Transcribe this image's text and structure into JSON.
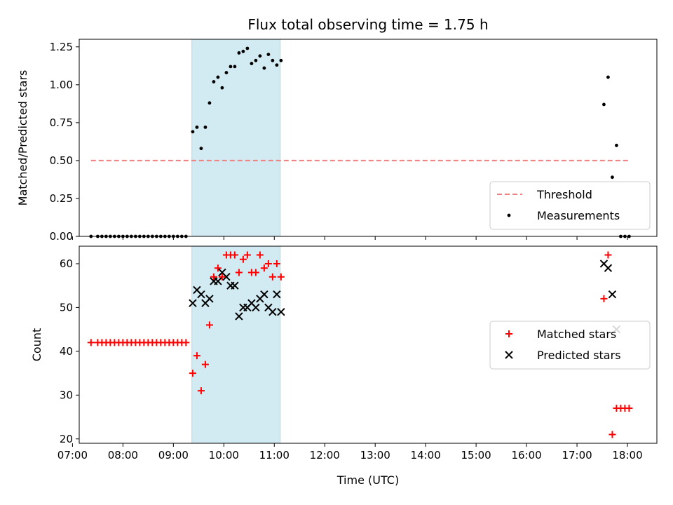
{
  "chart_data": {
    "title": "Flux total observing time = 1.75 h",
    "xlabel": "Time (UTC)",
    "xlim": [
      "07:08",
      "18:35"
    ],
    "xticks": [
      "07:00",
      "08:00",
      "09:00",
      "10:00",
      "11:00",
      "12:00",
      "13:00",
      "14:00",
      "15:00",
      "16:00",
      "17:00",
      "18:00"
    ],
    "shaded_interval": [
      "09:22",
      "11:07"
    ],
    "shaded_color": "#add8e6",
    "panels": [
      {
        "type": "scatter",
        "ylabel": "Matched/Predicted stars",
        "ylim": [
          0,
          1.3
        ],
        "yticks": [
          "0.00",
          "0.25",
          "0.50",
          "0.75",
          "1.00",
          "1.25"
        ],
        "legend_position": "lower-right",
        "series": [
          {
            "name": "Threshold",
            "style": "dashed-line",
            "color": "#f08080",
            "x": [
              "07:22",
              "18:02"
            ],
            "y": [
              0.5,
              0.5
            ]
          },
          {
            "name": "Measurements",
            "style": "dot",
            "color": "#000000",
            "x": [
              "07:22",
              "07:30",
              "07:35",
              "07:40",
              "07:45",
              "07:50",
              "07:55",
              "08:00",
              "08:05",
              "08:10",
              "08:15",
              "08:20",
              "08:25",
              "08:30",
              "08:35",
              "08:40",
              "08:45",
              "08:50",
              "08:55",
              "09:00",
              "09:05",
              "09:10",
              "09:15",
              "09:23",
              "09:28",
              "09:33",
              "09:38",
              "09:43",
              "09:48",
              "09:53",
              "09:58",
              "10:03",
              "10:08",
              "10:13",
              "10:18",
              "10:23",
              "10:28",
              "10:33",
              "10:38",
              "10:43",
              "10:48",
              "10:53",
              "10:58",
              "11:03",
              "11:08",
              "17:32",
              "17:37",
              "17:42",
              "17:47",
              "17:52",
              "17:57",
              "18:02"
            ],
            "y": [
              0,
              0,
              0,
              0,
              0,
              0,
              0,
              0,
              0,
              0,
              0,
              0,
              0,
              0,
              0,
              0,
              0,
              0,
              0,
              0,
              0,
              0,
              0,
              0.69,
              0.72,
              0.58,
              0.72,
              0.88,
              1.02,
              1.05,
              0.98,
              1.08,
              1.12,
              1.12,
              1.21,
              1.22,
              1.24,
              1.14,
              1.16,
              1.19,
              1.11,
              1.2,
              1.16,
              1.13,
              1.16,
              0.87,
              1.05,
              0.39,
              0.6,
              0,
              0,
              0
            ]
          }
        ]
      },
      {
        "type": "scatter",
        "ylabel": "Count",
        "ylim": [
          19,
          64
        ],
        "yticks": [
          "20",
          "30",
          "40",
          "50",
          "60"
        ],
        "legend_position": "center-right",
        "series": [
          {
            "name": "Matched stars",
            "style": "plus",
            "color": "#ff0000",
            "x": [
              "07:22",
              "07:30",
              "07:35",
              "07:40",
              "07:45",
              "07:50",
              "07:55",
              "08:00",
              "08:05",
              "08:10",
              "08:15",
              "08:20",
              "08:25",
              "08:30",
              "08:35",
              "08:40",
              "08:45",
              "08:50",
              "08:55",
              "09:00",
              "09:05",
              "09:10",
              "09:15",
              "09:23",
              "09:28",
              "09:33",
              "09:38",
              "09:43",
              "09:48",
              "09:53",
              "09:58",
              "10:03",
              "10:08",
              "10:13",
              "10:18",
              "10:23",
              "10:28",
              "10:33",
              "10:38",
              "10:43",
              "10:48",
              "10:53",
              "10:58",
              "11:03",
              "11:08",
              "17:32",
              "17:37",
              "17:42",
              "17:47",
              "17:52",
              "17:57",
              "18:02"
            ],
            "y": [
              42,
              42,
              42,
              42,
              42,
              42,
              42,
              42,
              42,
              42,
              42,
              42,
              42,
              42,
              42,
              42,
              42,
              42,
              42,
              42,
              42,
              42,
              42,
              35,
              39,
              31,
              37,
              46,
              57,
              59,
              57,
              62,
              62,
              62,
              58,
              61,
              62,
              58,
              58,
              62,
              59,
              60,
              57,
              60,
              57,
              52,
              62,
              21,
              27,
              27,
              27,
              27
            ]
          },
          {
            "name": "Predicted stars",
            "style": "x",
            "color": "#000000",
            "x": [
              "09:23",
              "09:28",
              "09:33",
              "09:38",
              "09:43",
              "09:48",
              "09:53",
              "09:58",
              "10:03",
              "10:08",
              "10:13",
              "10:18",
              "10:23",
              "10:28",
              "10:33",
              "10:38",
              "10:43",
              "10:48",
              "10:53",
              "10:58",
              "11:03",
              "11:08",
              "17:32",
              "17:37",
              "17:42",
              "17:47"
            ],
            "y": [
              51,
              54,
              53,
              51,
              52,
              56,
              56,
              58,
              57,
              55,
              55,
              48,
              50,
              50,
              51,
              50,
              52,
              53,
              50,
              49,
              53,
              49,
              60,
              59,
              53,
              45
            ]
          }
        ]
      }
    ]
  }
}
